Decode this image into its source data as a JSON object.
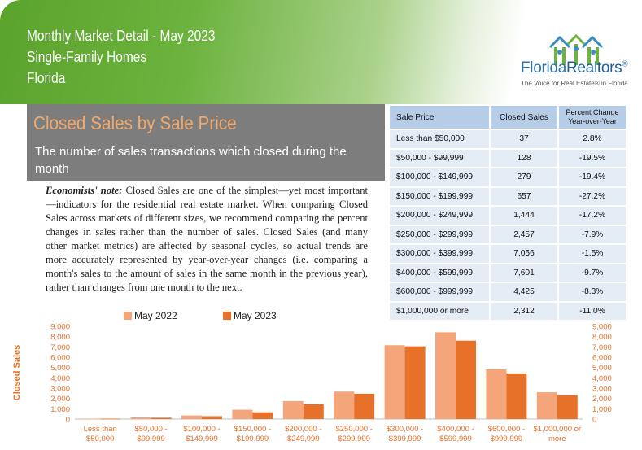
{
  "header": {
    "line1": "Monthly Market Detail - May 2023",
    "line2": "Single-Family Homes",
    "line3": "Florida"
  },
  "logo": {
    "name_part1": "Florida",
    "name_part2": "Realtors",
    "registered": "®",
    "tagline": "The Voice for Real Estate® in Florida"
  },
  "title_box": {
    "heading": "Closed Sales by Sale Price",
    "subtitle": "The number of sales transactions which closed during the month"
  },
  "note": {
    "lead": "Economists' note:",
    "body": " Closed Sales are one of the simplest—yet most important—indicators for the residential real estate market. When comparing Closed Sales across markets of different sizes, we recommend comparing the percent changes in sales rather than the number of sales. Closed Sales (and many other market metrics) are affected by seasonal cycles, so actual trends are more accurately represented by year-over-year changes (i.e. comparing a month's sales to the amount of sales in the same month in the previous year), rather than changes from one month to the next."
  },
  "table": {
    "headers": [
      "Sale Price",
      "Closed Sales",
      "Percent Change Year-over-Year"
    ],
    "rows": [
      [
        "Less than $50,000",
        "37",
        "2.8%"
      ],
      [
        "$50,000 - $99,999",
        "128",
        "-19.5%"
      ],
      [
        "$100,000 - $149,999",
        "279",
        "-19.4%"
      ],
      [
        "$150,000 - $199,999",
        "657",
        "-27.2%"
      ],
      [
        "$200,000 - $249,999",
        "1,444",
        "-17.2%"
      ],
      [
        "$250,000 - $299,999",
        "2,457",
        "-7.9%"
      ],
      [
        "$300,000 - $399,999",
        "7,056",
        "-1.5%"
      ],
      [
        "$400,000 - $599,999",
        "7,601",
        "-9.7%"
      ],
      [
        "$600,000 - $999,999",
        "4,425",
        "-8.3%"
      ],
      [
        "$1,000,000 or more",
        "2,312",
        "-11.0%"
      ]
    ]
  },
  "colors": {
    "series_2022": "#f4a67a",
    "series_2023": "#e8712a",
    "axis_label": "#e8712a"
  },
  "chart_data": {
    "type": "bar",
    "ylabel": "Closed Sales",
    "ylim": [
      0,
      9000
    ],
    "yticks": [
      "0",
      "1,000",
      "2,000",
      "3,000",
      "4,000",
      "5,000",
      "6,000",
      "7,000",
      "8,000",
      "9,000"
    ],
    "legend_position": "top",
    "grid": false,
    "categories": [
      [
        "Less than",
        "$50,000"
      ],
      [
        "$50,000 -",
        "$99,999"
      ],
      [
        "$100,000 -",
        "$149,999"
      ],
      [
        "$150,000 -",
        "$199,999"
      ],
      [
        "$200,000 -",
        "$249,999"
      ],
      [
        "$250,000 -",
        "$299,999"
      ],
      [
        "$300,000 -",
        "$399,999"
      ],
      [
        "$400,000 -",
        "$599,999"
      ],
      [
        "$600,000 -",
        "$999,999"
      ],
      [
        "$1,000,000 or",
        "more"
      ]
    ],
    "series": [
      {
        "name": "May 2022",
        "values": [
          36,
          159,
          346,
          902,
          1744,
          2667,
          7163,
          8419,
          4826,
          2598
        ]
      },
      {
        "name": "May 2023",
        "values": [
          37,
          128,
          279,
          657,
          1444,
          2457,
          7056,
          7601,
          4425,
          2312
        ]
      }
    ]
  }
}
